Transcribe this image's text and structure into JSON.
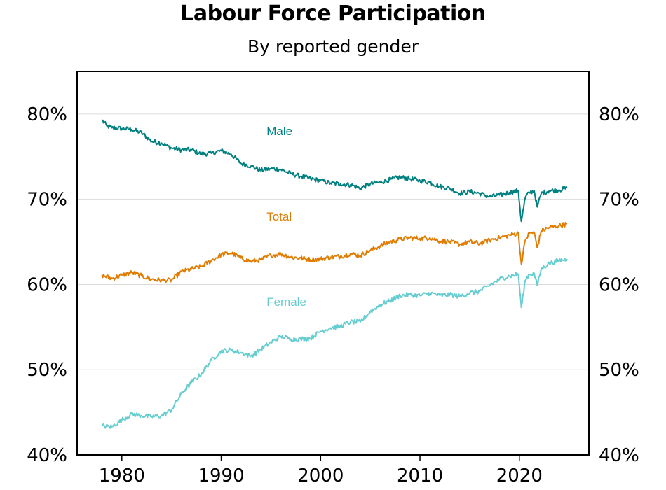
{
  "chart_data": {
    "type": "line",
    "title": "Labour Force Participation",
    "subtitle": "By reported gender",
    "xlim": [
      1975.5,
      2027
    ],
    "ylim": [
      40,
      85
    ],
    "x_ticks": [
      1980,
      1990,
      2000,
      2010,
      2020
    ],
    "x_tick_labels": [
      "1980",
      "1990",
      "2000",
      "2010",
      "2020"
    ],
    "y_ticks": [
      40,
      50,
      60,
      70,
      80
    ],
    "y_tick_labels": [
      "40%",
      "50%",
      "60%",
      "70%",
      "80%"
    ],
    "grid": "horizontal",
    "series": [
      {
        "name": "Male",
        "color": "#008080",
        "label_at": [
          1994,
          78
        ],
        "points": [
          [
            1978.0,
            79.3
          ],
          [
            1978.5,
            78.6
          ],
          [
            1979,
            78.4
          ],
          [
            1980,
            78.3
          ],
          [
            1981,
            78.2
          ],
          [
            1982,
            77.8
          ],
          [
            1983,
            76.8
          ],
          [
            1984,
            76.6
          ],
          [
            1985,
            76.0
          ],
          [
            1986,
            75.8
          ],
          [
            1987,
            75.8
          ],
          [
            1988,
            75.3
          ],
          [
            1989,
            75.4
          ],
          [
            1990,
            75.7
          ],
          [
            1991,
            75.3
          ],
          [
            1992,
            74.2
          ],
          [
            1993,
            73.9
          ],
          [
            1994,
            73.4
          ],
          [
            1995,
            73.6
          ],
          [
            1996,
            73.5
          ],
          [
            1997,
            73.0
          ],
          [
            1998,
            72.7
          ],
          [
            1999,
            72.4
          ],
          [
            2000,
            72.2
          ],
          [
            2001,
            71.9
          ],
          [
            2002,
            71.8
          ],
          [
            2003,
            71.7
          ],
          [
            2004,
            71.3
          ],
          [
            2005,
            71.8
          ],
          [
            2006,
            72.0
          ],
          [
            2007,
            72.3
          ],
          [
            2008,
            72.6
          ],
          [
            2009,
            72.4
          ],
          [
            2010,
            72.2
          ],
          [
            2011,
            72.0
          ],
          [
            2012,
            71.5
          ],
          [
            2013,
            71.3
          ],
          [
            2014,
            70.7
          ],
          [
            2015,
            70.9
          ],
          [
            2016,
            70.7
          ],
          [
            2017,
            70.3
          ],
          [
            2018,
            70.5
          ],
          [
            2019,
            70.8
          ],
          [
            2019.9,
            71.0
          ],
          [
            2020.2,
            67.4
          ],
          [
            2020.6,
            70.2
          ],
          [
            2021,
            70.8
          ],
          [
            2021.5,
            71.0
          ],
          [
            2021.8,
            69.1
          ],
          [
            2022.2,
            70.7
          ],
          [
            2023,
            71.0
          ],
          [
            2024,
            71.1
          ],
          [
            2024.8,
            71.3
          ]
        ]
      },
      {
        "name": "Total",
        "color": "#e07c00",
        "label_at": [
          1994,
          68
        ],
        "points": [
          [
            1978.0,
            61.1
          ],
          [
            1979,
            60.7
          ],
          [
            1980,
            61.1
          ],
          [
            1981,
            61.4
          ],
          [
            1982,
            61.0
          ],
          [
            1983,
            60.6
          ],
          [
            1984,
            60.5
          ],
          [
            1985,
            60.5
          ],
          [
            1986,
            61.5
          ],
          [
            1987,
            61.8
          ],
          [
            1988,
            62.1
          ],
          [
            1989,
            62.8
          ],
          [
            1990,
            63.5
          ],
          [
            1991,
            63.7
          ],
          [
            1992,
            63.1
          ],
          [
            1993,
            62.7
          ],
          [
            1994,
            62.9
          ],
          [
            1995,
            63.4
          ],
          [
            1996,
            63.6
          ],
          [
            1997,
            63.2
          ],
          [
            1998,
            63.1
          ],
          [
            1999,
            62.9
          ],
          [
            2000,
            63.0
          ],
          [
            2001,
            63.2
          ],
          [
            2002,
            63.3
          ],
          [
            2003,
            63.6
          ],
          [
            2004,
            63.4
          ],
          [
            2005,
            64.0
          ],
          [
            2006,
            64.5
          ],
          [
            2007,
            65.0
          ],
          [
            2008,
            65.3
          ],
          [
            2009,
            65.5
          ],
          [
            2010,
            65.4
          ],
          [
            2011,
            65.5
          ],
          [
            2012,
            65.1
          ],
          [
            2013,
            65.0
          ],
          [
            2014,
            64.7
          ],
          [
            2015,
            65.0
          ],
          [
            2016,
            64.8
          ],
          [
            2017,
            65.2
          ],
          [
            2018,
            65.5
          ],
          [
            2019,
            65.8
          ],
          [
            2019.9,
            66.0
          ],
          [
            2020.2,
            62.4
          ],
          [
            2020.6,
            65.2
          ],
          [
            2021,
            66.0
          ],
          [
            2021.5,
            66.1
          ],
          [
            2021.8,
            64.3
          ],
          [
            2022.2,
            66.3
          ],
          [
            2023,
            66.7
          ],
          [
            2024,
            66.9
          ],
          [
            2024.8,
            67.1
          ]
        ]
      },
      {
        "name": "Female",
        "color": "#66cdd0",
        "label_at": [
          1994,
          58
        ],
        "points": [
          [
            1978.0,
            43.4
          ],
          [
            1979,
            43.3
          ],
          [
            1980,
            44.1
          ],
          [
            1981,
            44.8
          ],
          [
            1982,
            44.6
          ],
          [
            1983,
            44.5
          ],
          [
            1984,
            44.6
          ],
          [
            1985,
            45.3
          ],
          [
            1986,
            47.2
          ],
          [
            1987,
            48.5
          ],
          [
            1988,
            49.5
          ],
          [
            1989,
            51.1
          ],
          [
            1990,
            52.2
          ],
          [
            1991,
            52.3
          ],
          [
            1992,
            52.0
          ],
          [
            1993,
            51.6
          ],
          [
            1994,
            52.4
          ],
          [
            1995,
            53.2
          ],
          [
            1996,
            53.9
          ],
          [
            1997,
            53.6
          ],
          [
            1998,
            53.6
          ],
          [
            1999,
            53.7
          ],
          [
            2000,
            54.5
          ],
          [
            2001,
            54.9
          ],
          [
            2002,
            55.1
          ],
          [
            2003,
            55.6
          ],
          [
            2004,
            55.6
          ],
          [
            2005,
            56.8
          ],
          [
            2006,
            57.6
          ],
          [
            2007,
            58.1
          ],
          [
            2008,
            58.7
          ],
          [
            2009,
            58.8
          ],
          [
            2010,
            58.7
          ],
          [
            2011,
            59.0
          ],
          [
            2012,
            58.7
          ],
          [
            2013,
            58.8
          ],
          [
            2014,
            58.6
          ],
          [
            2015,
            59.0
          ],
          [
            2016,
            59.2
          ],
          [
            2017,
            59.9
          ],
          [
            2018,
            60.6
          ],
          [
            2019,
            61.0
          ],
          [
            2019.9,
            61.2
          ],
          [
            2020.2,
            57.3
          ],
          [
            2020.6,
            60.5
          ],
          [
            2021,
            61.2
          ],
          [
            2021.5,
            61.3
          ],
          [
            2021.8,
            59.9
          ],
          [
            2022.2,
            61.8
          ],
          [
            2023,
            62.5
          ],
          [
            2024,
            62.8
          ],
          [
            2024.8,
            63.0
          ]
        ]
      }
    ]
  }
}
